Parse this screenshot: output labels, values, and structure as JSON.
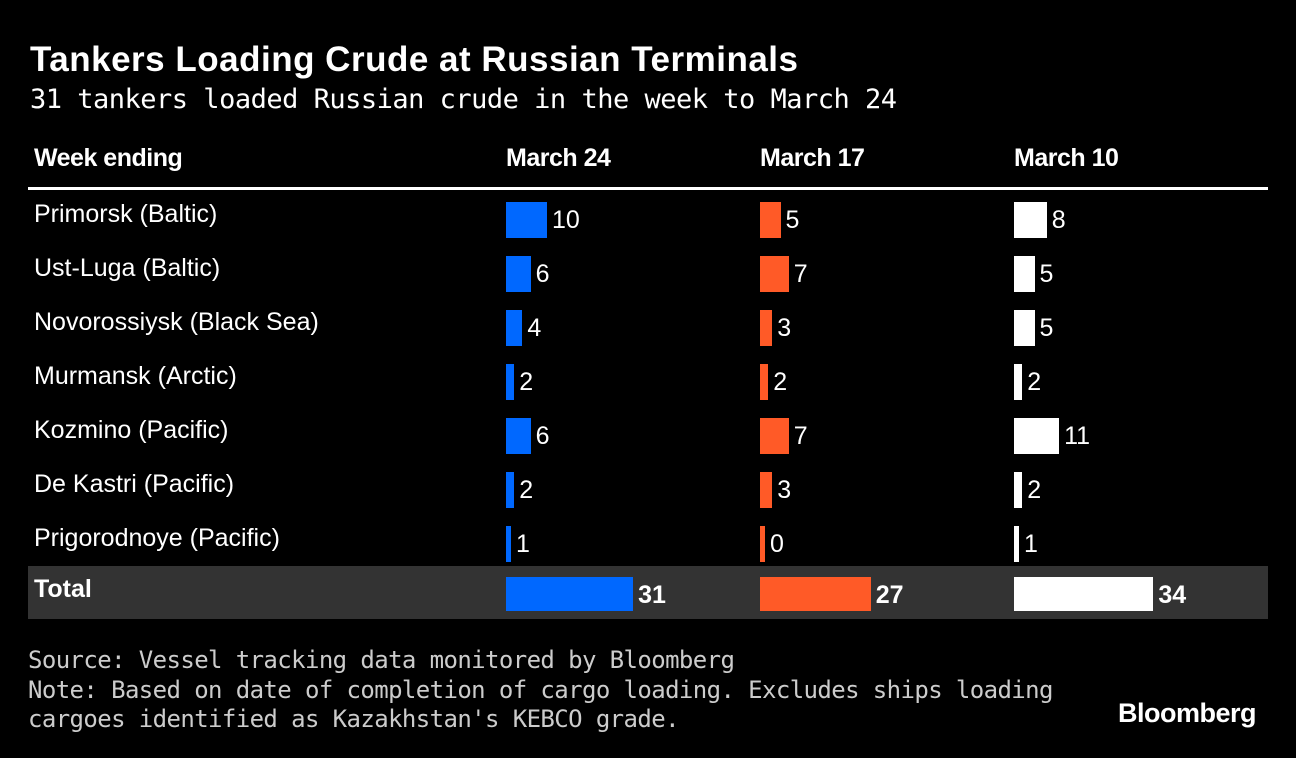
{
  "chart_data": {
    "type": "table",
    "title": "Tankers Loading Crude at Russian Terminals",
    "subtitle": "31 tankers loaded Russian crude in the week to March 24",
    "header_label": "Week ending",
    "columns": [
      {
        "name": "March 24",
        "color": "#0068ff"
      },
      {
        "name": "March 17",
        "color": "#ff5a27"
      },
      {
        "name": "March 10",
        "color": "#ffffff"
      }
    ],
    "rows": [
      {
        "label": "Primorsk (Baltic)",
        "values": [
          10,
          5,
          8
        ]
      },
      {
        "label": "Ust-Luga (Baltic)",
        "values": [
          6,
          7,
          5
        ]
      },
      {
        "label": "Novorossiysk (Black Sea)",
        "values": [
          4,
          3,
          5
        ]
      },
      {
        "label": "Murmansk (Arctic)",
        "values": [
          2,
          2,
          2
        ]
      },
      {
        "label": "Kozmino (Pacific)",
        "values": [
          6,
          7,
          11
        ]
      },
      {
        "label": "De Kastri (Pacific)",
        "values": [
          2,
          3,
          2
        ]
      },
      {
        "label": "Prigorodnoye (Pacific)",
        "values": [
          1,
          0,
          1
        ]
      }
    ],
    "total": {
      "label": "Total",
      "values": [
        31,
        27,
        34
      ]
    }
  },
  "footer": {
    "source": "Source: Vessel tracking data monitored by Bloomberg",
    "note_line1": "Note: Based on date of completion of cargo loading. Excludes ships loading",
    "note_line2": "cargoes identified as Kazakhstan's KEBCO grade."
  },
  "logo": "Bloomberg"
}
